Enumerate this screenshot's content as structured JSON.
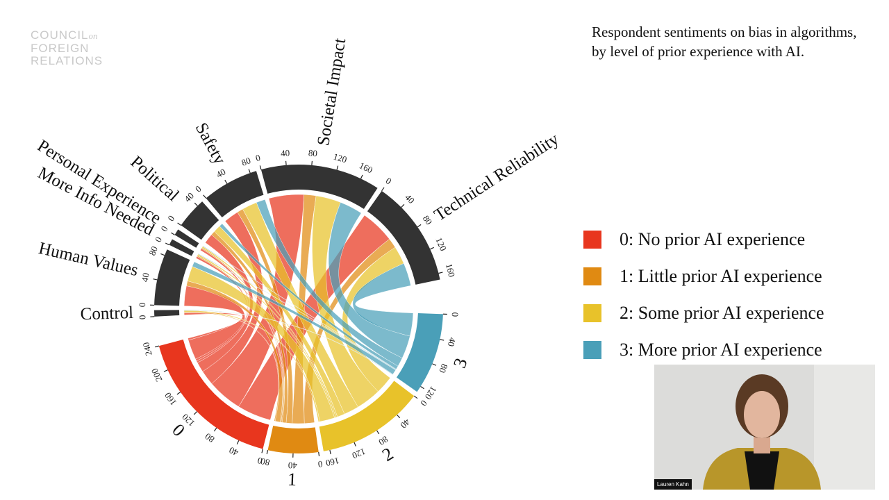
{
  "logo": {
    "lines": [
      "COUNCIL",
      "on",
      "FOREIGN",
      "RELATIONS"
    ]
  },
  "video_tile": {
    "name": "Lauren Kahn"
  },
  "chart_data": {
    "type": "chord",
    "title": "Respondent sentiments on bias in algorithms, by level of prior experience with AI.",
    "theme_color": "#333333",
    "themes": [
      {
        "name": "Control",
        "ticks": [
          0
        ]
      },
      {
        "name": "Human Values",
        "ticks": [
          0,
          40,
          80
        ]
      },
      {
        "name": "More Info Needed",
        "ticks": [
          0
        ]
      },
      {
        "name": "Personal Experience",
        "ticks": [
          0
        ]
      },
      {
        "name": "Political",
        "ticks": [
          0,
          40
        ]
      },
      {
        "name": "Safety",
        "ticks": [
          0,
          40,
          80
        ]
      },
      {
        "name": "Societal Impact",
        "ticks": [
          0,
          40,
          80,
          120,
          160
        ]
      },
      {
        "name": "Technical Reliability",
        "ticks": [
          0,
          40,
          80,
          120,
          160
        ]
      }
    ],
    "groups": [
      {
        "label": "0",
        "name": "0: No prior AI experience",
        "color": "#e8361e",
        "values": [
          4,
          40,
          4,
          4,
          20,
          30,
          70,
          68
        ],
        "ticks": [
          0,
          40,
          80,
          120,
          160,
          200,
          240
        ]
      },
      {
        "label": "1",
        "name": "1: Little prior AI experience",
        "color": "#e08a12",
        "values": [
          2,
          10,
          2,
          2,
          8,
          12,
          24,
          20
        ],
        "ticks": [
          0,
          40,
          80
        ]
      },
      {
        "label": "2",
        "name": "2: Some prior AI experience",
        "color": "#e8c22a",
        "values": [
          3,
          30,
          3,
          3,
          15,
          30,
          50,
          36
        ],
        "ticks": [
          0,
          40,
          80,
          120,
          160
        ]
      },
      {
        "label": "3",
        "name": "3: More prior AI experience",
        "color": "#4a9fb8",
        "values": [
          1,
          10,
          1,
          1,
          7,
          18,
          46,
          46
        ],
        "ticks": [
          0,
          40,
          80,
          120
        ]
      }
    ]
  }
}
